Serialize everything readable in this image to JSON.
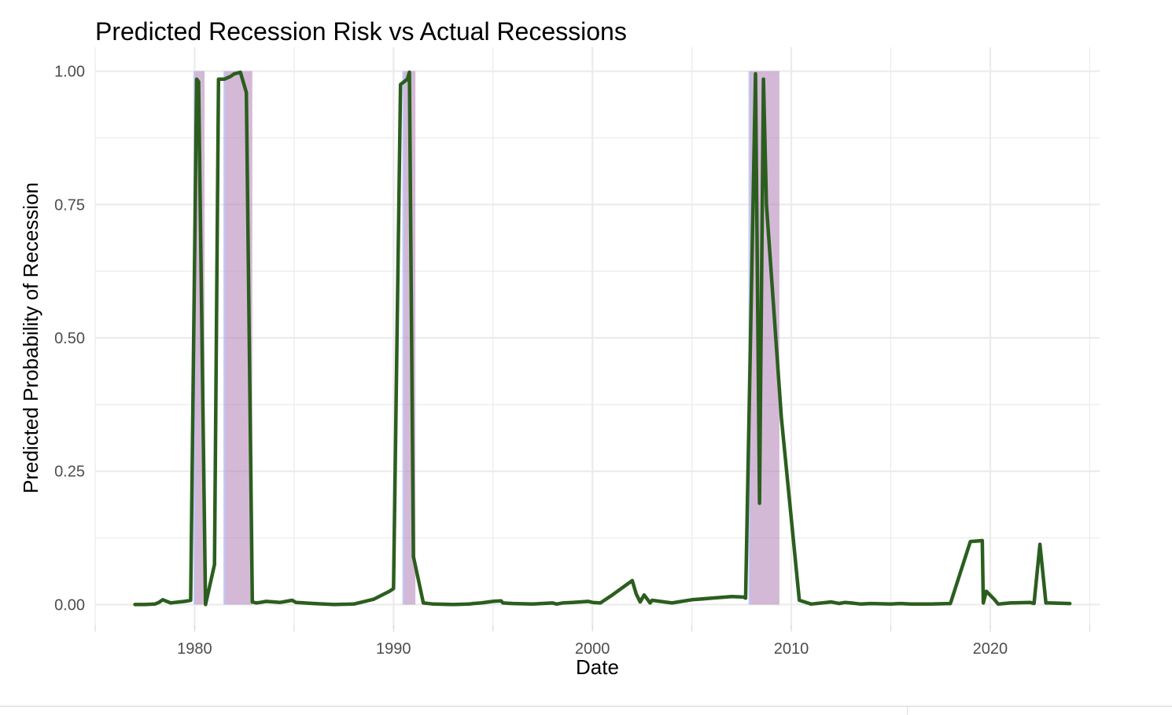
{
  "chart_data": {
    "type": "line",
    "title": "Predicted Recession Risk vs Actual Recessions",
    "xlabel": "Date",
    "ylabel": "Predicted Probability of Recession",
    "xlim": [
      1975,
      2025.5
    ],
    "ylim": [
      -0.045,
      1.045
    ],
    "x_ticks": [
      1980,
      1990,
      2000,
      2010,
      2020
    ],
    "x_tick_labels": [
      "1980",
      "1990",
      "2000",
      "2010",
      "2020"
    ],
    "y_ticks": [
      0,
      0.25,
      0.5,
      0.75,
      1
    ],
    "y_tick_labels": [
      "0.00",
      "0.25",
      "0.50",
      "0.75",
      "1.00"
    ],
    "grid": true,
    "colors": {
      "line": "#2b5e1e",
      "recession_fill": "#b07fb4",
      "band_edge": "#b9c2f2",
      "grid": "#ebebeb"
    },
    "recessions": [
      [
        1980.0,
        1980.5
      ],
      [
        1981.5,
        1982.9
      ],
      [
        1990.5,
        1991.1
      ],
      [
        2007.9,
        2009.4
      ]
    ],
    "series": [
      {
        "x": [
          1977.0,
          1977.5,
          1978.0,
          1978.2,
          1978.4,
          1978.6,
          1978.8,
          1979.0,
          1979.5,
          1979.8,
          1980.1,
          1980.2,
          1980.55,
          1981.0,
          1981.2,
          1981.5,
          1981.8,
          1982.0,
          1982.3,
          1982.6,
          1982.9,
          1983.1,
          1983.3,
          1983.6,
          1984.0,
          1984.3,
          1984.6,
          1984.9,
          1985.1,
          1986.0,
          1987.0,
          1988.0,
          1989.0,
          1989.8,
          1990.0,
          1990.35,
          1990.7,
          1990.8,
          1991.0,
          1991.5,
          1992.0,
          1993.0,
          1993.8,
          1994.0,
          1994.4,
          1995.0,
          1995.4,
          1995.5,
          1996.0,
          1997.0,
          1998.0,
          1998.2,
          1998.5,
          1999.0,
          1999.8,
          2000.0,
          2000.4,
          2001.0,
          2002.0,
          2002.2,
          2002.4,
          2002.6,
          2002.8,
          2002.9,
          2003.0,
          2004.0,
          2005.0,
          2006.0,
          2007.0,
          2007.6,
          2007.7,
          2008.2,
          2008.4,
          2008.6,
          2008.75,
          2009.5,
          2010.4,
          2011.0,
          2012.0,
          2012.4,
          2012.7,
          2013.0,
          2013.5,
          2014.0,
          2015.0,
          2015.5,
          2016.0,
          2017.0,
          2018.0,
          2019.0,
          2019.6,
          2019.65,
          2019.8,
          2020.2,
          2020.4,
          2021.0,
          2022.0,
          2022.2,
          2022.5,
          2022.8,
          2023.0,
          2024.0
        ],
        "y": [
          0.0,
          0.0,
          0.001,
          0.004,
          0.009,
          0.006,
          0.003,
          0.004,
          0.006,
          0.008,
          0.985,
          0.98,
          0.0,
          0.075,
          0.985,
          0.985,
          0.99,
          0.995,
          0.998,
          0.96,
          0.005,
          0.003,
          0.004,
          0.006,
          0.005,
          0.004,
          0.006,
          0.008,
          0.004,
          0.002,
          0.0,
          0.001,
          0.01,
          0.025,
          0.03,
          0.975,
          0.985,
          0.998,
          0.09,
          0.003,
          0.001,
          0.0,
          0.001,
          0.002,
          0.003,
          0.006,
          0.007,
          0.003,
          0.002,
          0.001,
          0.003,
          0.001,
          0.003,
          0.004,
          0.006,
          0.004,
          0.003,
          0.018,
          0.045,
          0.02,
          0.005,
          0.018,
          0.008,
          0.003,
          0.008,
          0.003,
          0.009,
          0.012,
          0.015,
          0.014,
          0.012,
          0.995,
          0.19,
          0.985,
          0.75,
          0.35,
          0.008,
          0.001,
          0.005,
          0.002,
          0.004,
          0.003,
          0.001,
          0.002,
          0.001,
          0.002,
          0.001,
          0.001,
          0.002,
          0.118,
          0.12,
          0.003,
          0.025,
          0.01,
          0.001,
          0.003,
          0.004,
          0.002,
          0.113,
          0.003,
          0.003,
          0.002
        ]
      }
    ]
  }
}
